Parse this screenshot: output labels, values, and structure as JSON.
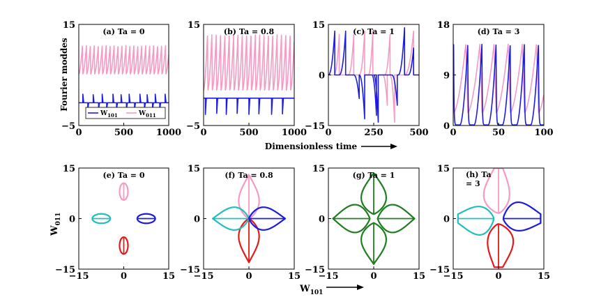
{
  "figure": {
    "x_label_top": "Dimensionless time",
    "y_label_top": "Fourier moddes",
    "x_label_bottom": "W",
    "x_label_bottom_sub": "101",
    "y_label_bottom": "W",
    "y_label_bottom_sub": "011"
  },
  "colors": {
    "w101": "#1c1ce0",
    "w011": "#f59ac4",
    "cyan": "#1fbfbf",
    "red": "#e31a1a",
    "green": "#1e7d1e"
  },
  "legend": {
    "w101": {
      "main": "W",
      "sub": "101"
    },
    "w011": {
      "main": "W",
      "sub": "011"
    }
  },
  "chart_data": [
    {
      "id": "a",
      "type": "line",
      "title": "(a) Ta = 0",
      "xlim": [
        0,
        1000
      ],
      "ylim": [
        -5,
        15
      ],
      "xticks": [
        "0",
        "500",
        "1000"
      ],
      "yticks": [
        "−5",
        "15"
      ],
      "series": [
        {
          "name": "W011",
          "kind": "sawtooth",
          "color_key": "w011",
          "period": 44,
          "phase": 0,
          "rise": 0.92,
          "min": 5.2,
          "max": 10.8
        },
        {
          "name": "W101",
          "kind": "spikes",
          "color_key": "w101",
          "baseline": -0.5,
          "min_value": -1.8,
          "spikes_up": [
            [
              45,
              1.2
            ],
            [
              160,
              1.1
            ],
            [
              260,
              1.2
            ],
            [
              380,
              1.2
            ],
            [
              470,
              1.1
            ],
            [
              560,
              1.2
            ],
            [
              680,
              1.2
            ],
            [
              760,
              1.1
            ],
            [
              850,
              1.2
            ],
            [
              960,
              1.2
            ]
          ],
          "spikes_down": [
            [
              100,
              -1.8
            ],
            [
              220,
              -1.8
            ],
            [
              310,
              -1.8
            ],
            [
              420,
              -1.8
            ],
            [
              530,
              -1.8
            ],
            [
              620,
              -1.8
            ],
            [
              730,
              -1.8
            ],
            [
              820,
              -1.8
            ],
            [
              900,
              -1.8
            ]
          ]
        }
      ],
      "legend": "bottom"
    },
    {
      "id": "b",
      "type": "line",
      "title": "(b) Ta = 0.8",
      "xlim": [
        0,
        1000
      ],
      "ylim": [
        -5,
        15
      ],
      "xticks": [
        "0",
        "500",
        "1000"
      ],
      "yticks": [
        "−5",
        "15"
      ],
      "series": [
        {
          "name": "W011",
          "kind": "sawtooth",
          "color_key": "w011",
          "period": 48,
          "phase": 0,
          "rise": 0.9,
          "min": 2.0,
          "max": 13.0
        },
        {
          "name": "W101",
          "kind": "spikes",
          "color_key": "w101",
          "baseline": 0.4,
          "min_value": -2.8,
          "spikes_up": [],
          "spikes_down": [
            [
              20,
              -2.8
            ],
            [
              145,
              -2.6
            ],
            [
              250,
              -2.8
            ],
            [
              370,
              -2.6
            ],
            [
              500,
              -2.8
            ],
            [
              610,
              -2.7
            ],
            [
              750,
              -2.8
            ],
            [
              870,
              -2.7
            ]
          ]
        }
      ]
    },
    {
      "id": "c",
      "type": "line",
      "title": "(c) Ta = 1",
      "xlim": [
        0,
        500
      ],
      "ylim": [
        -15,
        15
      ],
      "xticks": [
        "0",
        "250",
        "500"
      ],
      "yticks": [
        "−15",
        "0",
        "15"
      ],
      "series": [
        {
          "name": "W011",
          "kind": "bursts",
          "color_key": "w011",
          "bursts": [
            [
              30,
              60,
              12
            ],
            [
              110,
              140,
              12
            ],
            [
              170,
              200,
              13
            ],
            [
              220,
              245,
              13
            ],
            [
              310,
              340,
              12
            ],
            [
              420,
              470,
              13
            ]
          ],
          "neg_bursts": [
            [
              300,
              325,
              -9
            ],
            [
              340,
              365,
              -14
            ]
          ]
        },
        {
          "name": "W101",
          "kind": "bursts",
          "color_key": "w101",
          "bursts": [
            [
              0,
              35,
              13
            ],
            [
              60,
              95,
              13
            ],
            [
              385,
              420,
              14
            ],
            [
              440,
              470,
              8
            ]
          ],
          "neg_bursts": [
            [
              140,
              170,
              -7
            ],
            [
              170,
              200,
              -13
            ],
            [
              240,
              265,
              -12
            ],
            [
              250,
              275,
              -14
            ],
            [
              350,
              380,
              -9
            ]
          ]
        }
      ]
    },
    {
      "id": "d",
      "type": "line",
      "title": "(d) Ta = 3",
      "xlim": [
        0,
        100
      ],
      "ylim": [
        0,
        18
      ],
      "xticks": [
        "0",
        "50",
        "100"
      ],
      "yticks": [
        "0",
        "9",
        "18"
      ],
      "series": [
        {
          "name": "W011",
          "kind": "sawtooth",
          "color_key": "w011",
          "period": 15.6,
          "phase": 0.6,
          "rise": 0.85,
          "min": 2.3,
          "max": 14.5
        },
        {
          "name": "W101",
          "kind": "decays",
          "color_key": "w101",
          "period": 15.6,
          "phase": 7.5,
          "max": 14.5,
          "min": 0.1
        }
      ]
    },
    {
      "id": "e",
      "type": "line",
      "title": "(e) Ta = 0",
      "xlim": [
        -15,
        15
      ],
      "ylim": [
        -15,
        15
      ],
      "xticks": [
        "−15",
        "0",
        "15"
      ],
      "yticks": [
        "−15",
        "0",
        "15"
      ],
      "loops": [
        {
          "color_key": "w011",
          "angle": 90,
          "center": 8.0,
          "len": 5.0,
          "half_width": 1.4,
          "offset": 0.4
        },
        {
          "color_key": "red",
          "angle": 270,
          "center": 8.0,
          "len": 5.0,
          "half_width": 1.4,
          "offset": 0.4
        },
        {
          "color_key": "cyan",
          "angle": 180,
          "center": 7.5,
          "len": 6.0,
          "half_width": 1.4,
          "offset": 0.0
        },
        {
          "color_key": "w101",
          "angle": 0,
          "center": 7.5,
          "len": 6.0,
          "half_width": 1.4,
          "offset": 0.0
        }
      ]
    },
    {
      "id": "f",
      "type": "line",
      "title": "(f) Ta = 0.8",
      "xlim": [
        -15,
        15
      ],
      "ylim": [
        -15,
        15
      ],
      "xticks": [
        "−15",
        "0",
        "15"
      ],
      "yticks": [
        "−15",
        "0",
        "15"
      ],
      "loops": [
        {
          "color_key": "w011",
          "angle": 90,
          "petal": 13,
          "half_width": 3.6
        },
        {
          "color_key": "red",
          "angle": 270,
          "petal": 13,
          "half_width": 3.6
        },
        {
          "color_key": "cyan",
          "angle": 180,
          "petal": 12,
          "half_width": 3.6
        },
        {
          "color_key": "w101",
          "angle": 0,
          "petal": 12,
          "half_width": 3.6
        }
      ]
    },
    {
      "id": "g",
      "type": "line",
      "title": "(g) Ta = 1",
      "xlim": [
        -15,
        15
      ],
      "ylim": [
        -15,
        15
      ],
      "xticks": [
        "−15",
        "0",
        "15"
      ],
      "yticks": [
        "−15",
        "0",
        "15"
      ],
      "loops": [
        {
          "color_key": "green",
          "angle": 90,
          "petal": 13.5,
          "half_width": 4.4,
          "gap": 1.3
        },
        {
          "color_key": "green",
          "angle": 270,
          "petal": 13.5,
          "half_width": 4.4,
          "gap": 1.3
        },
        {
          "color_key": "green",
          "angle": 180,
          "petal": 13.5,
          "half_width": 4.4,
          "gap": 1.3
        },
        {
          "color_key": "green",
          "angle": 0,
          "petal": 13.5,
          "half_width": 4.4,
          "gap": 1.3
        }
      ]
    },
    {
      "id": "h",
      "type": "line",
      "title": "(h) Ta",
      "title2": "= 3",
      "xlim": [
        -15,
        15
      ],
      "ylim": [
        -15,
        15
      ],
      "xticks": [
        "−15",
        "0",
        "15"
      ],
      "yticks": [
        "−15",
        "0",
        "15"
      ],
      "loops": [
        {
          "color_key": "w011",
          "angle": 90,
          "petal": 15,
          "half_width": 4.5,
          "gap": 1.6,
          "skew": 22
        },
        {
          "color_key": "red",
          "angle": 270,
          "petal": 14.5,
          "half_width": 4.5,
          "gap": 1.6,
          "skew": 22
        },
        {
          "color_key": "cyan",
          "angle": 180,
          "petal": 13.5,
          "half_width": 4.5,
          "gap": 1.6,
          "skew": 22
        },
        {
          "color_key": "w101",
          "angle": 0,
          "petal": 14,
          "half_width": 4.5,
          "gap": 1.6,
          "skew": 22
        }
      ]
    }
  ]
}
